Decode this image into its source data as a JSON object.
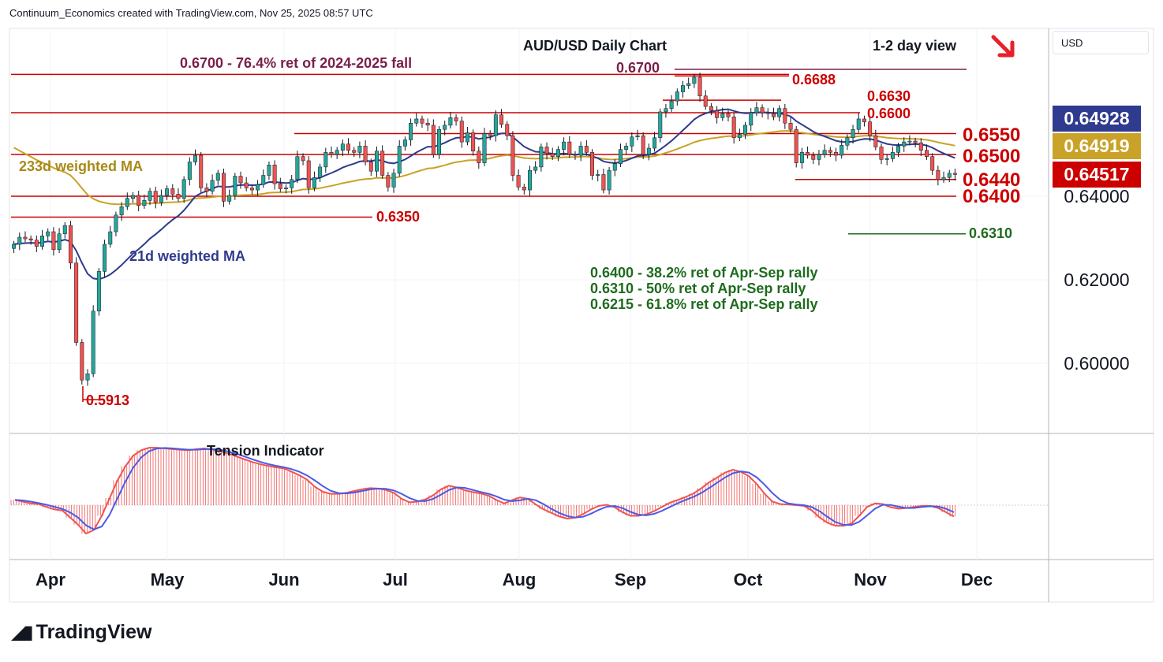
{
  "header": {
    "attribution": "Continuum_Economics created with TradingView.com, Nov 25, 2025 08:57 UTC"
  },
  "currency_button": "USD",
  "brand": {
    "name": "TradingView"
  },
  "colors": {
    "up": "#26a69a",
    "down": "#ef5350",
    "ma21": "#2e3b8e",
    "ma233": "#c9a227",
    "level": "#cc0000",
    "target": "#1e6b1e",
    "ret": "#7b1e4a"
  },
  "chart_data": {
    "type": "candlestick",
    "title": "AUD/USD Daily Chart",
    "subtitle": "1-2 day view",
    "direction_icon": "arrow-down-right-icon",
    "x_labels": [
      "Apr",
      "May",
      "Jun",
      "Jul",
      "Aug",
      "Sep",
      "Oct",
      "Nov",
      "Dec"
    ],
    "y_axis": {
      "ticks": [
        0.64,
        0.62,
        0.6
      ],
      "tick_labels": [
        "0.64000",
        "0.62000",
        "0.60000"
      ],
      "range": [
        0.585,
        0.6785
      ]
    },
    "price_tags": [
      {
        "label": "0.64928",
        "value": 0.64928,
        "color": "#2e3b8e"
      },
      {
        "label": "0.64919",
        "value": 0.64919,
        "color": "#c9a227"
      },
      {
        "label": "0.64517",
        "value": 0.64517,
        "color": "#cc0000"
      }
    ],
    "horizontal_levels": [
      {
        "label": "0.6700",
        "value": 0.67,
        "kind": "ret"
      },
      {
        "label": "0.6688",
        "value": 0.6688,
        "kind": "line"
      },
      {
        "label": "0.6630",
        "value": 0.663,
        "kind": "line"
      },
      {
        "label": "0.6600",
        "value": 0.66,
        "kind": "line"
      },
      {
        "label": "0.6550",
        "value": 0.655,
        "kind": "big"
      },
      {
        "label": "0.6500",
        "value": 0.65,
        "kind": "big"
      },
      {
        "label": "0.6440",
        "value": 0.644,
        "kind": "big"
      },
      {
        "label": "0.6400",
        "value": 0.64,
        "kind": "big"
      },
      {
        "label": "0.6350",
        "value": 0.635,
        "kind": "line"
      },
      {
        "label": "0.6310",
        "value": 0.631,
        "kind": "target"
      },
      {
        "label": "0.5913",
        "value": 0.5913,
        "kind": "line"
      }
    ],
    "annotations": [
      "0.6700 - 76.4% ret of 2024-2025 fall",
      "233d weighted MA",
      "21d weighted MA",
      "0.6400 - 38.2% ret of Apr-Sep rally",
      "0.6310 - 50% ret of Apr-Sep rally",
      "0.6215 - 61.8% ret of Apr-Sep rally"
    ],
    "ma233_label": "233d weighted MA",
    "ma21_label": "21d weighted MA",
    "close_series": [
      0.6285,
      0.6302,
      0.6298,
      0.6295,
      0.628,
      0.6305,
      0.6315,
      0.6272,
      0.631,
      0.633,
      0.624,
      0.605,
      0.596,
      0.5975,
      0.6125,
      0.622,
      0.6285,
      0.6315,
      0.6355,
      0.6375,
      0.6395,
      0.6402,
      0.6378,
      0.639,
      0.6412,
      0.6385,
      0.6402,
      0.6418,
      0.6405,
      0.6395,
      0.644,
      0.6482,
      0.6498,
      0.642,
      0.6412,
      0.6438,
      0.6455,
      0.6388,
      0.6402,
      0.6448,
      0.6432,
      0.642,
      0.6415,
      0.6428,
      0.645,
      0.6475,
      0.643,
      0.6418,
      0.642,
      0.644,
      0.6495,
      0.6485,
      0.642,
      0.6445,
      0.647,
      0.6505,
      0.65,
      0.651,
      0.6525,
      0.651,
      0.6505,
      0.652,
      0.6482,
      0.646,
      0.6508,
      0.645,
      0.6422,
      0.6455,
      0.652,
      0.6535,
      0.6575,
      0.6585,
      0.6575,
      0.657,
      0.65,
      0.656,
      0.657,
      0.6588,
      0.658,
      0.653,
      0.6552,
      0.6508,
      0.648,
      0.655,
      0.6545,
      0.6595,
      0.6572,
      0.6545,
      0.645,
      0.6422,
      0.6415,
      0.6462,
      0.647,
      0.6518,
      0.6502,
      0.6495,
      0.6512,
      0.653,
      0.65,
      0.6498,
      0.652,
      0.6505,
      0.645,
      0.6452,
      0.6415,
      0.6462,
      0.6478,
      0.6512,
      0.652,
      0.6542,
      0.6545,
      0.65,
      0.6515,
      0.654,
      0.6602,
      0.661,
      0.6628,
      0.665,
      0.6665,
      0.667,
      0.6685,
      0.664,
      0.6615,
      0.6605,
      0.6588,
      0.6598,
      0.659,
      0.654,
      0.6548,
      0.657,
      0.66,
      0.6612,
      0.66,
      0.6598,
      0.659,
      0.661,
      0.6575,
      0.656,
      0.648,
      0.6505,
      0.6498,
      0.6488,
      0.65,
      0.651,
      0.6505,
      0.6498,
      0.6522,
      0.654,
      0.656,
      0.6585,
      0.6578,
      0.6545,
      0.6518,
      0.6488,
      0.649,
      0.6505,
      0.652,
      0.653,
      0.6532,
      0.6528,
      0.651,
      0.6495,
      0.6462,
      0.644,
      0.6445,
      0.6455,
      0.6452
    ]
  },
  "tension": {
    "title": "Tension Indicator",
    "values": [
      0.15,
      0.1,
      0.05,
      0.03,
      -0.05,
      -0.12,
      -0.15,
      -0.35,
      -0.55,
      -0.8,
      -0.7,
      -0.3,
      0.2,
      0.7,
      1.1,
      1.4,
      1.55,
      1.62,
      1.62,
      1.6,
      1.58,
      1.56,
      1.55,
      1.58,
      1.6,
      1.57,
      1.52,
      1.46,
      1.38,
      1.3,
      1.22,
      1.16,
      1.11,
      1.07,
      1.04,
      0.95,
      0.85,
      0.72,
      0.52,
      0.38,
      0.32,
      0.32,
      0.35,
      0.4,
      0.45,
      0.48,
      0.47,
      0.43,
      0.35,
      0.18,
      0.08,
      0.1,
      0.16,
      0.28,
      0.45,
      0.55,
      0.5,
      0.42,
      0.37,
      0.33,
      0.27,
      0.15,
      0.05,
      0.14,
      0.22,
      0.18,
      0.02,
      -0.12,
      -0.22,
      -0.32,
      -0.38,
      -0.35,
      -0.25,
      -0.12,
      -0.02,
      0.01,
      -0.06,
      -0.2,
      -0.3,
      -0.3,
      -0.26,
      -0.17,
      -0.05,
      0.07,
      0.15,
      0.23,
      0.33,
      0.48,
      0.65,
      0.78,
      0.92,
      1.0,
      0.94,
      0.82,
      0.6,
      0.32,
      0.1,
      0.03,
      0.02,
      0.0,
      -0.02,
      -0.15,
      -0.35,
      -0.5,
      -0.58,
      -0.58,
      -0.52,
      -0.3,
      -0.05,
      0.05,
      0.03,
      -0.06,
      -0.1,
      -0.08,
      -0.05,
      -0.02,
      -0.02,
      -0.08,
      -0.2,
      -0.32
    ],
    "zero_line": 0
  }
}
